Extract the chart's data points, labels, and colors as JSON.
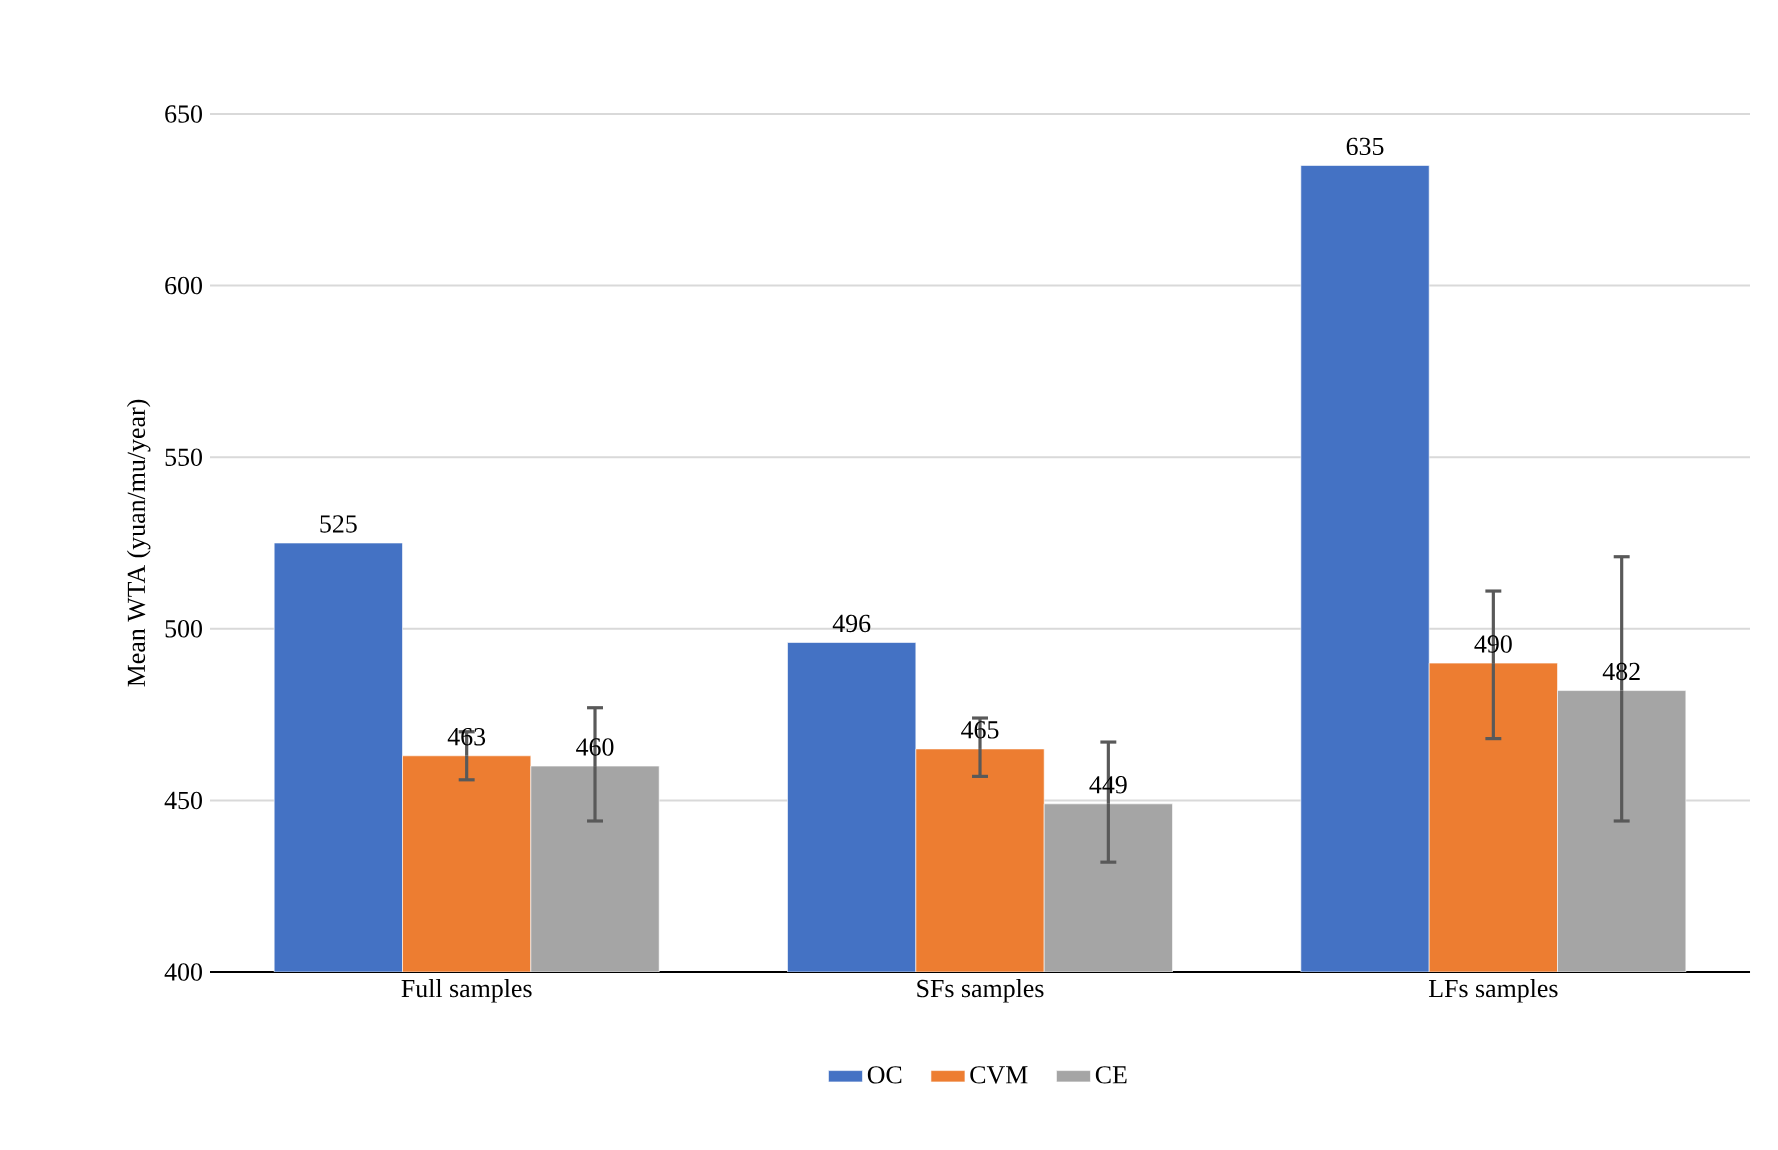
{
  "chart_data": {
    "type": "bar",
    "ylabel": "Mean WTA (yuan/mu/year)",
    "categories": [
      "Full samples",
      "SFs samples",
      "LFs samples"
    ],
    "series": [
      {
        "name": "OC",
        "color": "#4472c4",
        "values": [
          525,
          496,
          635
        ],
        "errors": [
          null,
          null,
          null
        ]
      },
      {
        "name": "CVM",
        "color": "#ed7d31",
        "values": [
          463,
          465,
          490
        ],
        "errors": [
          [
            456,
            470
          ],
          [
            457,
            474
          ],
          [
            468,
            511
          ]
        ]
      },
      {
        "name": "CE",
        "color": "#a5a5a5",
        "values": [
          460,
          449,
          482
        ],
        "errors": [
          [
            444,
            477
          ],
          [
            432,
            467
          ],
          [
            444,
            521
          ]
        ]
      }
    ],
    "ylim": [
      400,
      650
    ],
    "yticks": [
      400,
      450,
      500,
      550,
      600,
      650
    ],
    "grid": "y",
    "legend": "bottom",
    "data_labels": true
  }
}
